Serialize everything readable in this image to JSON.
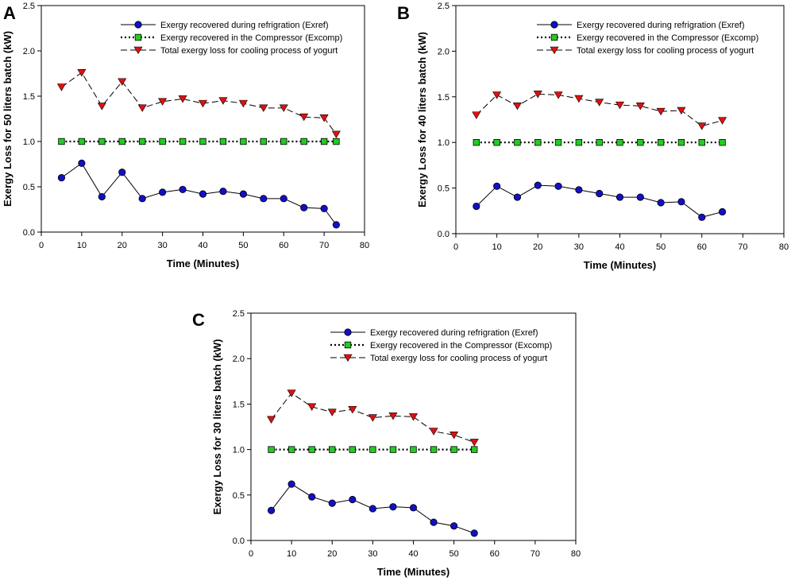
{
  "figure": {
    "series_colors": {
      "exref": "#1010c8",
      "excomp": "#22cc22",
      "total": "#e01010",
      "line": "#000000"
    }
  },
  "chart_data": [
    {
      "panel": "A",
      "type": "line",
      "xlabel": "Time (Minutes)",
      "ylabel": "Exergy Loss for 50 liters batch  (kW)",
      "xlim": [
        0,
        80
      ],
      "ylim": [
        0,
        2.5
      ],
      "xticks": [
        "0",
        "10",
        "20",
        "30",
        "40",
        "50",
        "60",
        "70",
        "80"
      ],
      "yticks": [
        "0.0",
        "0.5",
        "1.0",
        "1.5",
        "2.0",
        "2.5"
      ],
      "legend_position": "top-right",
      "series": [
        {
          "key": "exref",
          "name": "Exergy recovered during refrigration (Exref)",
          "marker": "circle",
          "line": "solid",
          "x": [
            5,
            10,
            15,
            20,
            25,
            30,
            35,
            40,
            45,
            50,
            55,
            60,
            65,
            70,
            73
          ],
          "y": [
            0.6,
            0.76,
            0.39,
            0.66,
            0.37,
            0.44,
            0.47,
            0.42,
            0.45,
            0.42,
            0.37,
            0.37,
            0.27,
            0.26,
            0.08
          ]
        },
        {
          "key": "excomp",
          "name": "Exergy recovered in the Compressor (Excomp)",
          "marker": "square",
          "line": "dotted",
          "x": [
            5,
            10,
            15,
            20,
            25,
            30,
            35,
            40,
            45,
            50,
            55,
            60,
            65,
            70,
            73
          ],
          "y": [
            1,
            1,
            1,
            1,
            1,
            1,
            1,
            1,
            1,
            1,
            1,
            1,
            1,
            1,
            1
          ]
        },
        {
          "key": "total",
          "name": "Total exergy loss for cooling process of yogurt",
          "marker": "triangle-down",
          "line": "dashed",
          "x": [
            5,
            10,
            15,
            20,
            25,
            30,
            35,
            40,
            45,
            50,
            55,
            60,
            65,
            70,
            73
          ],
          "y": [
            1.6,
            1.76,
            1.39,
            1.66,
            1.37,
            1.44,
            1.47,
            1.42,
            1.45,
            1.42,
            1.37,
            1.37,
            1.27,
            1.26,
            1.08
          ]
        }
      ]
    },
    {
      "panel": "B",
      "type": "line",
      "xlabel": "Time (Minutes)",
      "ylabel": "Exergy Loss for 40 liters batch  (kW)",
      "xlim": [
        0,
        80
      ],
      "ylim": [
        0,
        2.5
      ],
      "xticks": [
        "0",
        "10",
        "20",
        "30",
        "40",
        "50",
        "60",
        "70",
        "80"
      ],
      "yticks": [
        "0.0",
        "0.5",
        "1.0",
        "1.5",
        "2.0",
        "2.5"
      ],
      "legend_position": "top-right",
      "series": [
        {
          "key": "exref",
          "name": "Exergy recovered during refrigration (Exref)",
          "marker": "circle",
          "line": "solid",
          "x": [
            5,
            10,
            15,
            20,
            25,
            30,
            35,
            40,
            45,
            50,
            55,
            60,
            65
          ],
          "y": [
            0.3,
            0.52,
            0.4,
            0.53,
            0.52,
            0.48,
            0.44,
            0.4,
            0.4,
            0.34,
            0.35,
            0.18,
            0.24
          ]
        },
        {
          "key": "excomp",
          "name": "Exergy recovered in the Compressor (Excomp)",
          "marker": "square",
          "line": "dotted",
          "x": [
            5,
            10,
            15,
            20,
            25,
            30,
            35,
            40,
            45,
            50,
            55,
            60,
            65
          ],
          "y": [
            1,
            1,
            1,
            1,
            1,
            1,
            1,
            1,
            1,
            1,
            1,
            1,
            1
          ]
        },
        {
          "key": "total",
          "name": "Total exergy loss for cooling process of yogurt",
          "marker": "triangle-down",
          "line": "dashed",
          "x": [
            5,
            10,
            15,
            20,
            25,
            30,
            35,
            40,
            45,
            50,
            55,
            60,
            65
          ],
          "y": [
            1.3,
            1.52,
            1.4,
            1.53,
            1.52,
            1.48,
            1.44,
            1.41,
            1.4,
            1.34,
            1.35,
            1.18,
            1.24
          ]
        }
      ]
    },
    {
      "panel": "C",
      "type": "line",
      "xlabel": "Time (Minutes)",
      "ylabel": "Exergy Loss for 30 liters batch  (kW)",
      "xlim": [
        0,
        80
      ],
      "ylim": [
        0,
        2.5
      ],
      "xticks": [
        "0",
        "10",
        "20",
        "30",
        "40",
        "50",
        "60",
        "70",
        "80"
      ],
      "yticks": [
        "0.0",
        "0.5",
        "1.0",
        "1.5",
        "2.0",
        "2.5"
      ],
      "legend_position": "top-right",
      "series": [
        {
          "key": "exref",
          "name": "Exergy recovered during refrigration (Exref)",
          "marker": "circle",
          "line": "solid",
          "x": [
            5,
            10,
            15,
            20,
            25,
            30,
            35,
            40,
            45,
            50,
            55
          ],
          "y": [
            0.33,
            0.62,
            0.48,
            0.41,
            0.45,
            0.35,
            0.37,
            0.36,
            0.2,
            0.16,
            0.08
          ]
        },
        {
          "key": "excomp",
          "name": "Exergy recovered in the Compressor (Excomp)",
          "marker": "square",
          "line": "dotted",
          "x": [
            5,
            10,
            15,
            20,
            25,
            30,
            35,
            40,
            45,
            50,
            55
          ],
          "y": [
            1,
            1,
            1,
            1,
            1,
            1,
            1,
            1,
            1,
            1,
            1
          ]
        },
        {
          "key": "total",
          "name": "Total exergy loss for cooling process of yogurt",
          "marker": "triangle-down",
          "line": "dashed",
          "x": [
            5,
            10,
            15,
            20,
            25,
            30,
            35,
            40,
            45,
            50,
            55
          ],
          "y": [
            1.33,
            1.62,
            1.47,
            1.41,
            1.44,
            1.35,
            1.37,
            1.36,
            1.2,
            1.16,
            1.08
          ]
        }
      ]
    }
  ]
}
